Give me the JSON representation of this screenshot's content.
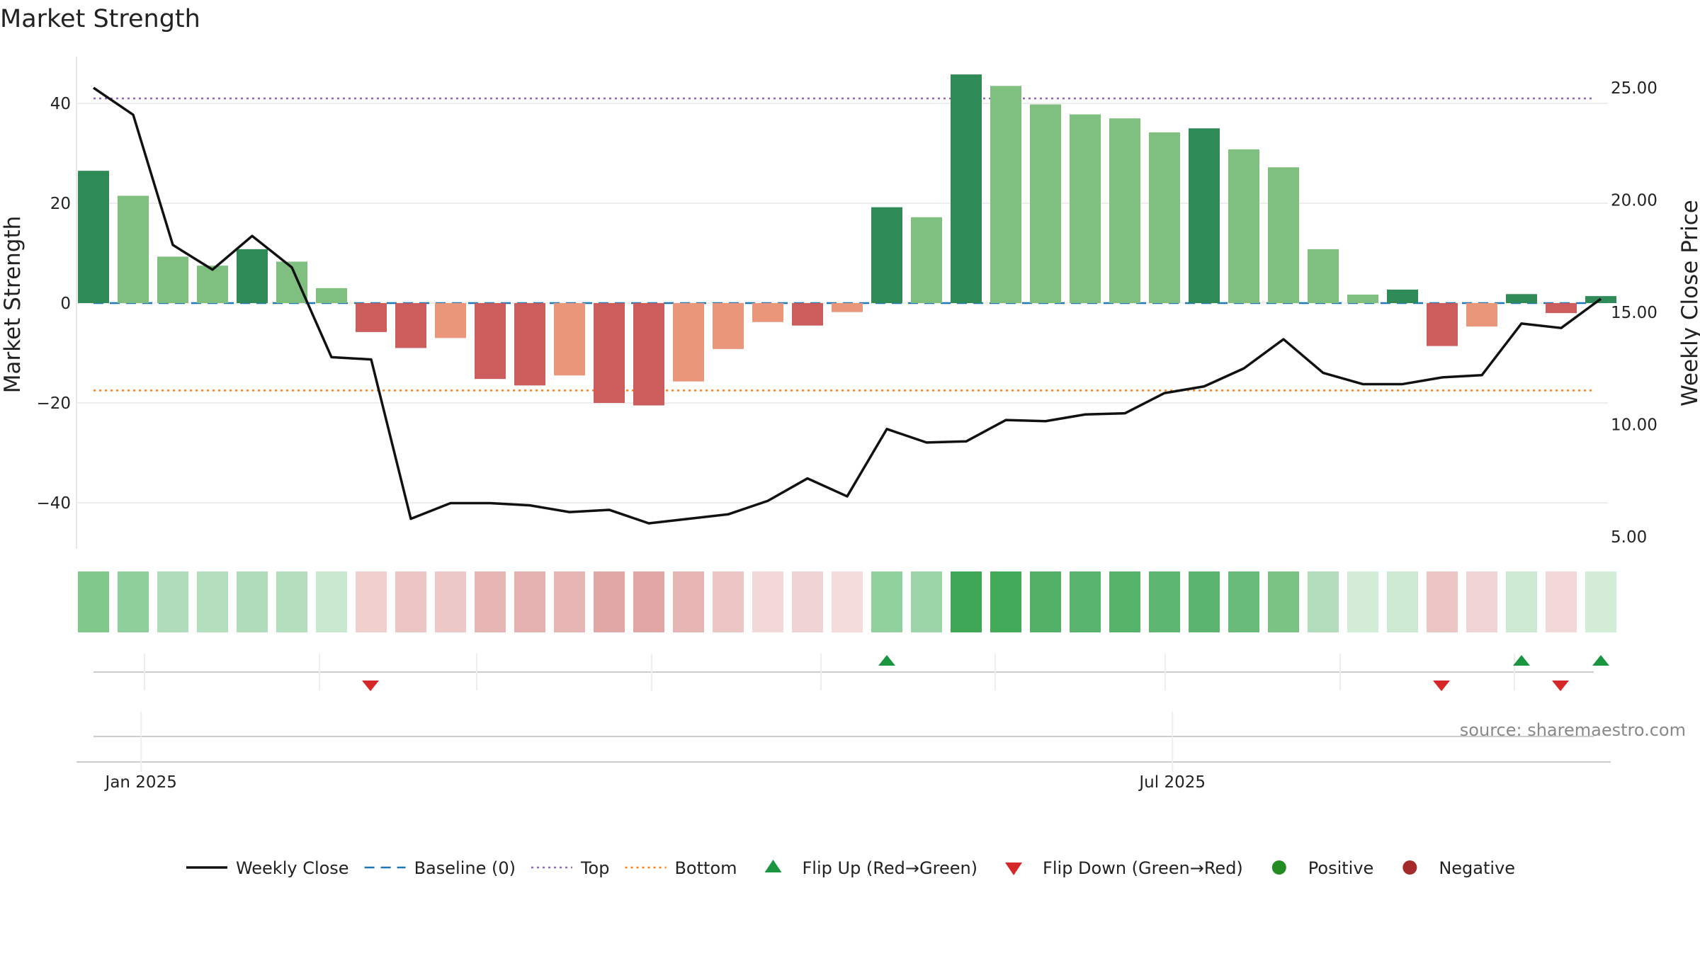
{
  "chart_data": {
    "type": "bar",
    "title": "Market Strength",
    "ylabel_left": "Market Strength",
    "ylabel_right": "Weekly Close Price",
    "y_left_range": [
      -49,
      49
    ],
    "y_left_ticks": [
      {
        "value": 40,
        "label": "40"
      },
      {
        "value": 20,
        "label": "20"
      },
      {
        "value": 0,
        "label": "0"
      },
      {
        "value": -20,
        "label": "−20"
      },
      {
        "value": -40,
        "label": "−40"
      }
    ],
    "y_right_ticks": [
      {
        "value": 25,
        "label": "25.00"
      },
      {
        "value": 20,
        "label": "20.00"
      },
      {
        "value": 15,
        "label": "15.00"
      },
      {
        "value": 10,
        "label": "10.00"
      },
      {
        "value": 5,
        "label": "5.00"
      }
    ],
    "x_ticks": [
      {
        "index": 1.2,
        "label": "Jan 2025"
      },
      {
        "index": 27.2,
        "label": "Jul 2025"
      }
    ],
    "weeks": 39,
    "strength": [
      26.5,
      21.5,
      9.3,
      7.5,
      10.8,
      8.3,
      3.0,
      -5.8,
      -9.0,
      -7.0,
      -15.2,
      -16.5,
      -14.5,
      -20.0,
      -20.5,
      -15.7,
      -9.2,
      -3.8,
      -4.5,
      -1.8,
      19.2,
      17.2,
      45.8,
      43.5,
      39.8,
      37.8,
      37.0,
      34.2,
      35.0,
      30.8,
      27.2,
      10.8,
      1.7,
      2.7,
      -8.6,
      -4.7,
      1.8,
      -2.0,
      1.4
    ],
    "bar_colors": [
      "#2e8b57",
      "#7fbf7f",
      "#7fbf7f",
      "#7fbf7f",
      "#2e8b57",
      "#7fbf7f",
      "#7fbf7f",
      "#cd5c5c",
      "#cd5c5c",
      "#e9967a",
      "#cd5c5c",
      "#cd5c5c",
      "#e9967a",
      "#cd5c5c",
      "#cd5c5c",
      "#e9967a",
      "#e9967a",
      "#e9967a",
      "#cd5c5c",
      "#e9967a",
      "#2e8b57",
      "#7fbf7f",
      "#2e8b57",
      "#7fbf7f",
      "#7fbf7f",
      "#7fbf7f",
      "#7fbf7f",
      "#7fbf7f",
      "#2e8b57",
      "#7fbf7f",
      "#7fbf7f",
      "#7fbf7f",
      "#7fbf7f",
      "#2e8b57",
      "#cd5c5c",
      "#e9967a",
      "#2e8b57",
      "#cd5c5c",
      "#2e8b57"
    ],
    "weekly_close": [
      25.0,
      23.8,
      18.0,
      16.9,
      18.4,
      17.0,
      13.0,
      12.9,
      5.8,
      6.5,
      6.5,
      6.4,
      6.1,
      6.2,
      5.6,
      5.8,
      6.0,
      6.6,
      7.6,
      6.8,
      9.8,
      9.2,
      9.25,
      10.2,
      10.15,
      10.45,
      10.5,
      11.4,
      11.7,
      12.5,
      13.8,
      12.3,
      11.8,
      11.8,
      12.1,
      12.2,
      14.5,
      14.3,
      15.6
    ],
    "top_line": 41,
    "bottom_line": -17.5,
    "baseline": 0,
    "heat_strip_colors": [
      "#7fc98d",
      "#8ecf9b",
      "#afdcba",
      "#b5debe",
      "#b0dcbb",
      "#b4debd",
      "#c8e8cf",
      "#efd0cf",
      "#ebc6c5",
      "#ecc9c8",
      "#e6b5b4",
      "#e4b1b0",
      "#e6b5b4",
      "#e1a7a6",
      "#e0a5a4",
      "#e6b4b3",
      "#ebc6c5",
      "#f2d9d8",
      "#f0d4d3",
      "#f3dcdb",
      "#8fd09c",
      "#9cd5a7",
      "#3ea856",
      "#42aa59",
      "#52b167",
      "#58b46c",
      "#56b36a",
      "#5db670",
      "#5bb56e",
      "#69bb7b",
      "#7ac384",
      "#b2dcbc",
      "#d2ecd7",
      "#cde9d3",
      "#ecc6c5",
      "#f1d5d4",
      "#cde9d3",
      "#f2d9d8",
      "#d3ecd8"
    ],
    "flip_up": [
      20,
      36,
      38
    ],
    "flip_down": [
      7,
      34,
      37
    ],
    "flip_up_color": "#1a9641",
    "flip_down_color": "#d62728",
    "legend": [
      {
        "label": "Weekly Close",
        "kind": "line",
        "color": "#111111"
      },
      {
        "label": "Baseline (0)",
        "kind": "dash",
        "color": "#1f77b4"
      },
      {
        "label": "Top",
        "kind": "dot",
        "color": "#9467bd"
      },
      {
        "label": "Bottom",
        "kind": "dot",
        "color": "#ff7f0e"
      },
      {
        "label": "Flip Up (Red→Green)",
        "kind": "triangle-up",
        "color": "#1a9641"
      },
      {
        "label": "Flip Down (Green→Red)",
        "kind": "triangle-down",
        "color": "#d62728"
      },
      {
        "label": "Positive",
        "kind": "circle",
        "color": "#228b22"
      },
      {
        "label": "Negative",
        "kind": "circle",
        "color": "#a52a2a"
      }
    ],
    "source": "source: sharemaestro.com"
  }
}
